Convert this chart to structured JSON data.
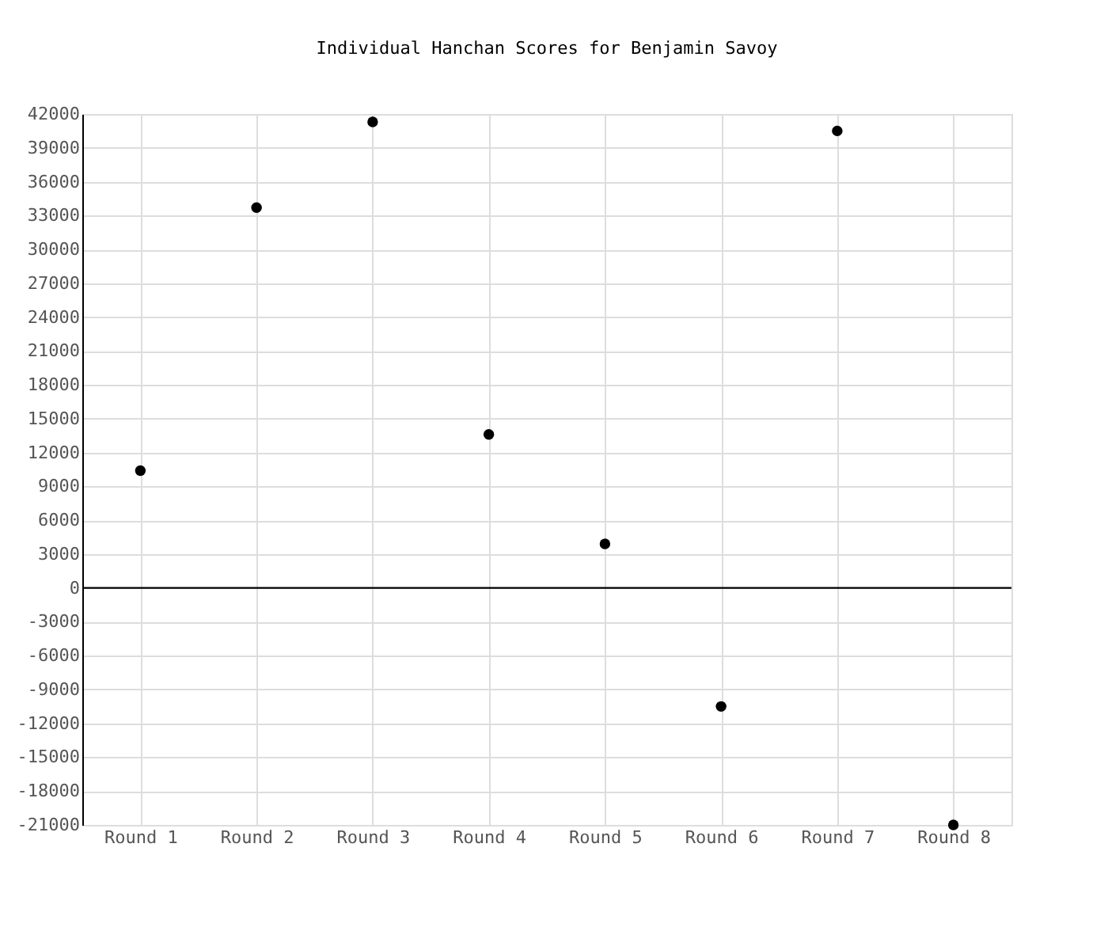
{
  "chart_data": {
    "type": "scatter",
    "title": "Individual Hanchan Scores for Benjamin Savoy",
    "categories": [
      "Round 1",
      "Round 2",
      "Round 3",
      "Round 4",
      "Round 5",
      "Round 6",
      "Round 7",
      "Round 8"
    ],
    "series": [
      {
        "color": "#000000",
        "values": [
          10400,
          33700,
          41300,
          13600,
          3900,
          -10500,
          40500,
          -21000
        ]
      }
    ],
    "ylim": [
      -21000,
      42000
    ],
    "yticks": [
      -21000,
      -18000,
      -15000,
      -12000,
      -9000,
      -6000,
      -3000,
      0,
      3000,
      6000,
      9000,
      12000,
      15000,
      18000,
      21000,
      24000,
      27000,
      30000,
      33000,
      36000,
      39000,
      42000
    ],
    "ref_lines": [
      {
        "axis": "y",
        "value": 0,
        "color": "#000000"
      }
    ],
    "grid": true,
    "marker": "circle"
  }
}
